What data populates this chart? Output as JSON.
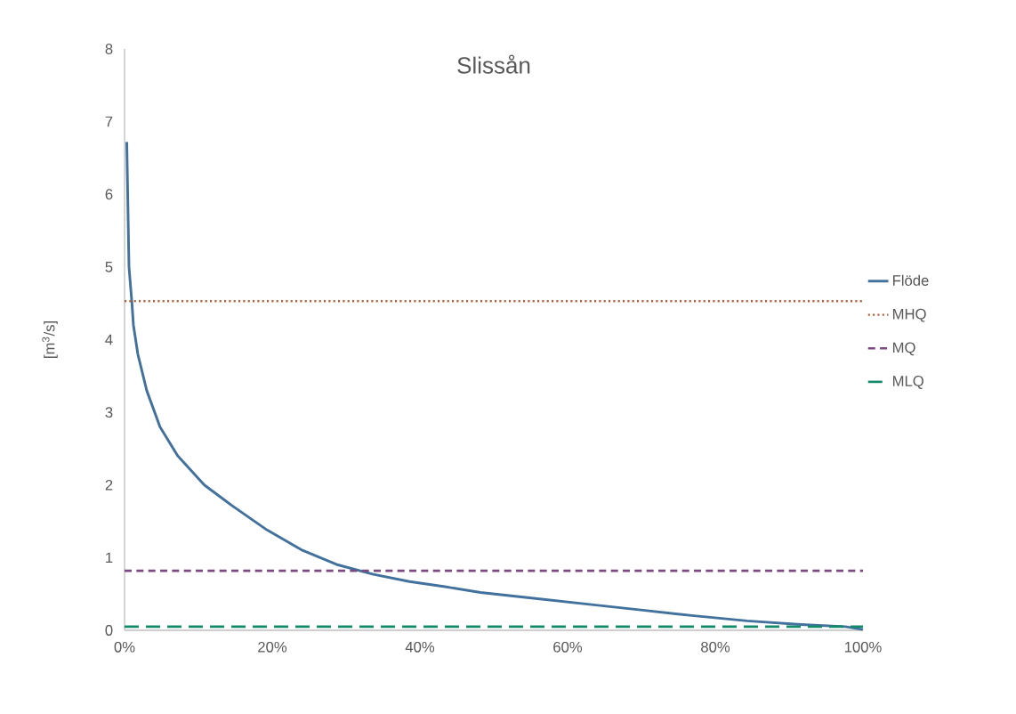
{
  "chart_data": {
    "type": "line",
    "title": "Slissån",
    "ylabel": "[m$^{3}$/s]",
    "xlim": [
      0,
      100
    ],
    "ylim": [
      0,
      8
    ],
    "xticks": [
      {
        "value": 0,
        "label": "0%"
      },
      {
        "value": 20,
        "label": "20%"
      },
      {
        "value": 40,
        "label": "40%"
      },
      {
        "value": 60,
        "label": "60%"
      },
      {
        "value": 80,
        "label": "80%"
      },
      {
        "value": 100,
        "label": "100%"
      }
    ],
    "yticks": [
      0,
      1,
      2,
      3,
      4,
      5,
      6,
      7,
      8
    ],
    "grid": false,
    "legend": "right",
    "series": [
      {
        "name": "Flöde",
        "color": "#41719c",
        "line_style": "solid",
        "x": [
          0.3,
          0.6,
          1,
          1.2,
          1.8,
          3,
          4.8,
          7.2,
          10.8,
          14.5,
          19.3,
          24.1,
          28.9,
          33.7,
          38.6,
          43.4,
          48.2,
          55.4,
          62.7,
          69.9,
          77.1,
          84.3,
          91.6,
          97.6,
          100
        ],
        "values": [
          6.72,
          5.0,
          4.5,
          4.2,
          3.8,
          3.3,
          2.8,
          2.4,
          2.0,
          1.72,
          1.38,
          1.1,
          0.9,
          0.77,
          0.67,
          0.6,
          0.52,
          0.44,
          0.36,
          0.28,
          0.2,
          0.13,
          0.08,
          0.05,
          0.01
        ]
      },
      {
        "name": "MHQ",
        "color": "#b0603a",
        "line_style": "dotted",
        "x": [
          0,
          100
        ],
        "values": [
          4.53,
          4.53
        ]
      },
      {
        "name": "MQ",
        "color": "#7a4a80",
        "line_style": "dashed",
        "x": [
          0,
          100
        ],
        "values": [
          0.82,
          0.82
        ]
      },
      {
        "name": "MLQ",
        "color": "#138a6a",
        "line_style": "dashed",
        "x": [
          0,
          100
        ],
        "values": [
          0.05,
          0.05
        ]
      }
    ]
  }
}
